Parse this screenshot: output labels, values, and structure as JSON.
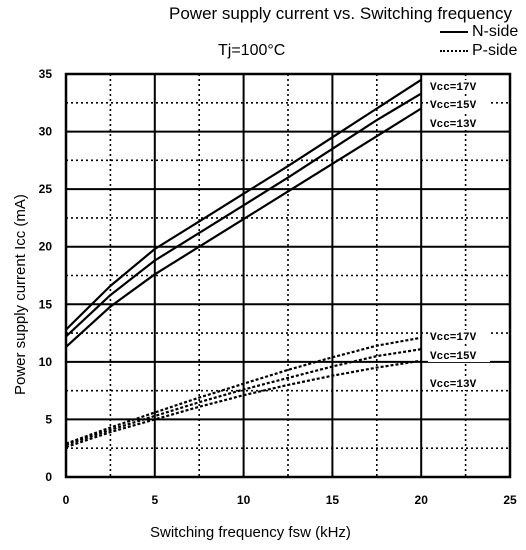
{
  "chart_data": {
    "type": "line",
    "title": "Power supply current vs. Switching frequency",
    "condition": "Tj=100°C",
    "xlabel": "Switching frequency  fsw (kHz)",
    "ylabel": "Power supply current  Icc (mA)",
    "xlim": [
      0,
      25
    ],
    "ylim": [
      0,
      35
    ],
    "x_ticks": [
      "0",
      "5",
      "10",
      "15",
      "20",
      "25"
    ],
    "y_ticks": [
      "0",
      "5",
      "10",
      "15",
      "20",
      "25",
      "30",
      "35"
    ],
    "grid": true,
    "legend": [
      {
        "label": "N-side",
        "style": "solid"
      },
      {
        "label": "P-side",
        "style": "dotted"
      }
    ],
    "x": [
      0,
      2.5,
      5,
      7.5,
      10,
      12.5,
      15,
      17.5,
      20
    ],
    "series": [
      {
        "name": "Vcc=17V",
        "group": "N-side",
        "values": [
          12.8,
          16.6,
          19.8,
          22.2,
          24.6,
          27.0,
          29.5,
          32.0,
          34.5
        ]
      },
      {
        "name": "Vcc=15V",
        "group": "N-side",
        "values": [
          12.2,
          15.8,
          18.8,
          21.2,
          23.6,
          26.0,
          28.5,
          31.0,
          33.3
        ]
      },
      {
        "name": "Vcc=13V",
        "group": "N-side",
        "values": [
          11.3,
          14.8,
          17.6,
          20.0,
          22.4,
          24.8,
          27.2,
          29.6,
          32.0
        ]
      },
      {
        "name": "Vcc=17V",
        "group": "P-side",
        "values": [
          2.9,
          4.3,
          5.6,
          6.9,
          8.1,
          9.3,
          10.4,
          11.4,
          12.1
        ]
      },
      {
        "name": "Vcc=15V",
        "group": "P-side",
        "values": [
          2.8,
          4.1,
          5.3,
          6.5,
          7.6,
          8.6,
          9.6,
          10.5,
          11.1
        ]
      },
      {
        "name": "Vcc=13V",
        "group": "P-side",
        "values": [
          2.6,
          3.9,
          5.0,
          6.1,
          7.1,
          8.0,
          8.8,
          9.5,
          10.1
        ]
      }
    ]
  }
}
